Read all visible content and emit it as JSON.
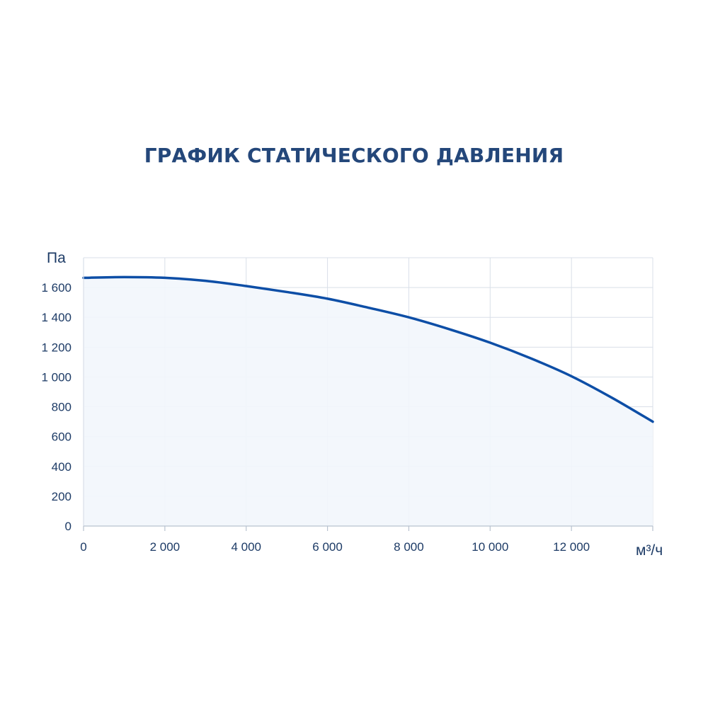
{
  "chart_data": {
    "type": "area",
    "title": "ГРАФИК СТАТИЧЕСКОГО ДАВЛЕНИЯ",
    "ylabel": "Па",
    "xlabel": "м³/ч",
    "xlim": [
      0,
      14000
    ],
    "ylim": [
      0,
      1800
    ],
    "x_ticks": [
      0,
      2000,
      4000,
      6000,
      8000,
      10000,
      12000
    ],
    "x_tick_labels": [
      "0",
      "2 000",
      "4 000",
      "6 000",
      "8 000",
      "10 000",
      "12 000"
    ],
    "y_ticks": [
      0,
      200,
      400,
      600,
      800,
      1000,
      1200,
      1400,
      1600
    ],
    "y_tick_labels": [
      "0",
      "200",
      "400",
      "600",
      "800",
      "1 000",
      "1 200",
      "1 400",
      "1 600"
    ],
    "grid": true,
    "series": [
      {
        "x": [
          0,
          1000,
          2000,
          3000,
          4000,
          5000,
          6000,
          7000,
          8000,
          9000,
          10000,
          11000,
          12000,
          13000,
          14000
        ],
        "values": [
          1665,
          1670,
          1665,
          1645,
          1610,
          1570,
          1525,
          1465,
          1400,
          1320,
          1230,
          1125,
          1005,
          860,
          700
        ]
      }
    ],
    "colors": {
      "line": "#0d4ea6",
      "fill": "#f2f6fc",
      "grid": "#d9dfe8",
      "text": "#1d3b66",
      "title": "#24477a"
    }
  }
}
